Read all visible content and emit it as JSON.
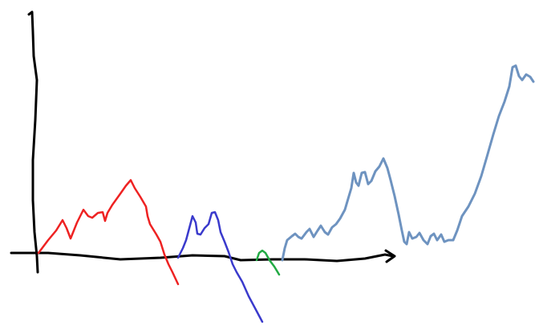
{
  "colors": {
    "axes": "#000000",
    "red_curve": "#ee2222",
    "blue_curve": "#3a3acc",
    "green_curve": "#22aa44",
    "steel_curve": "#6e93c0"
  }
}
